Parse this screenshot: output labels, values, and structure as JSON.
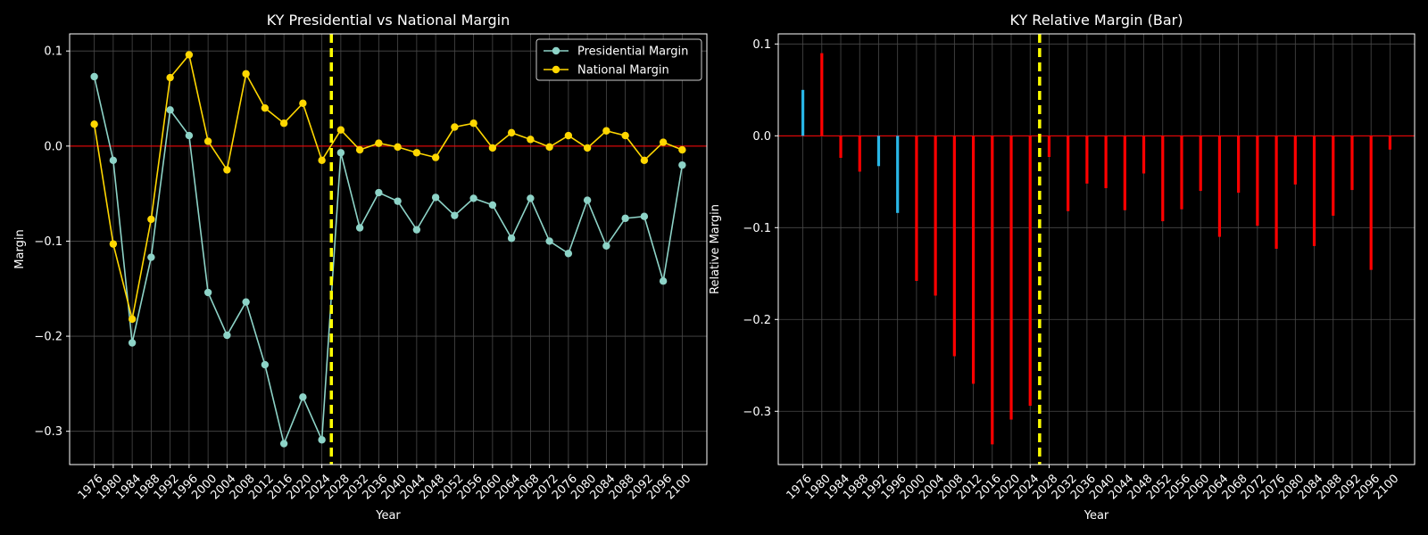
{
  "chart_data": [
    {
      "type": "line",
      "title": "KY Presidential vs National Margin",
      "xlabel": "Year",
      "ylabel": "Margin",
      "xlim": [
        1970.8,
        2105.2
      ],
      "ylim": [
        -0.335,
        0.118
      ],
      "yticks": [
        0.1,
        0.0,
        -0.1,
        -0.2,
        -0.3
      ],
      "ytick_labels": [
        "0.1",
        "0.0",
        "−0.1",
        "−0.2",
        "−0.3"
      ],
      "x": [
        1976,
        1980,
        1984,
        1988,
        1992,
        1996,
        2000,
        2004,
        2008,
        2012,
        2016,
        2020,
        2024,
        2028,
        2032,
        2036,
        2040,
        2044,
        2048,
        2052,
        2056,
        2060,
        2064,
        2068,
        2072,
        2076,
        2080,
        2084,
        2088,
        2092,
        2096,
        2100
      ],
      "x_tick_labels": [
        "1976",
        "1980",
        "1984",
        "1988",
        "1992",
        "1996",
        "2000",
        "2004",
        "2008",
        "2012",
        "2016",
        "2020",
        "2024",
        "2028",
        "2032",
        "2036",
        "2040",
        "2044",
        "2048",
        "2052",
        "2056",
        "2060",
        "2064",
        "2068",
        "2072",
        "2076",
        "2080",
        "2084",
        "2088",
        "2092",
        "2096",
        "2100"
      ],
      "series": [
        {
          "name": "Presidential Margin",
          "color": "#8dd3c7",
          "values": [
            0.073,
            -0.015,
            -0.207,
            -0.117,
            0.038,
            0.011,
            -0.154,
            -0.199,
            -0.164,
            -0.23,
            -0.313,
            -0.264,
            -0.309,
            -0.007,
            -0.086,
            -0.049,
            -0.058,
            -0.088,
            -0.054,
            -0.073,
            -0.055,
            -0.062,
            -0.097,
            -0.055,
            -0.1,
            -0.113,
            -0.057,
            -0.105,
            -0.076,
            -0.074,
            -0.142,
            -0.02
          ]
        },
        {
          "name": "National Margin",
          "color": "#ffd700",
          "values": [
            0.023,
            -0.103,
            -0.182,
            -0.077,
            0.072,
            0.096,
            0.005,
            -0.025,
            0.076,
            0.04,
            0.024,
            0.045,
            -0.015,
            0.017,
            -0.004,
            0.003,
            -0.001,
            -0.007,
            -0.012,
            0.02,
            0.024,
            -0.002,
            0.014,
            0.007,
            -0.001,
            0.011,
            -0.002,
            0.016,
            0.011,
            -0.015,
            0.004,
            -0.004
          ]
        }
      ],
      "reference_lines": {
        "zero_line": {
          "y": 0,
          "color": "#ff0000"
        },
        "divider": {
          "x": 2026,
          "color": "#ffff00",
          "style": "dashed"
        }
      },
      "grid": true,
      "legend": "top-right"
    },
    {
      "type": "bar",
      "title": "KY Relative Margin (Bar)",
      "xlabel": "Year",
      "ylabel": "Relative Margin",
      "xlim": [
        1970.8,
        2105.2
      ],
      "ylim": [
        -0.358,
        0.111
      ],
      "yticks": [
        0.1,
        0.0,
        -0.1,
        -0.2,
        -0.3
      ],
      "ytick_labels": [
        "0.1",
        "0.0",
        "−0.1",
        "−0.2",
        "−0.3"
      ],
      "x": [
        1976,
        1980,
        1984,
        1988,
        1992,
        1996,
        2000,
        2004,
        2008,
        2012,
        2016,
        2020,
        2024,
        2028,
        2032,
        2036,
        2040,
        2044,
        2048,
        2052,
        2056,
        2060,
        2064,
        2068,
        2072,
        2076,
        2080,
        2084,
        2088,
        2092,
        2096,
        2100
      ],
      "x_tick_labels": [
        "1976",
        "1980",
        "1984",
        "1988",
        "1992",
        "1996",
        "2000",
        "2004",
        "2008",
        "2012",
        "2016",
        "2020",
        "2024",
        "2028",
        "2032",
        "2036",
        "2040",
        "2044",
        "2048",
        "2052",
        "2056",
        "2060",
        "2064",
        "2068",
        "2072",
        "2076",
        "2080",
        "2084",
        "2088",
        "2092",
        "2096",
        "2100"
      ],
      "values": [
        0.05,
        0.09,
        -0.024,
        -0.039,
        -0.033,
        -0.084,
        -0.158,
        -0.174,
        -0.24,
        -0.27,
        -0.336,
        -0.309,
        -0.294,
        -0.023,
        -0.082,
        -0.052,
        -0.057,
        -0.081,
        -0.041,
        -0.093,
        -0.08,
        -0.06,
        -0.11,
        -0.062,
        -0.098,
        -0.123,
        -0.053,
        -0.12,
        -0.087,
        -0.059,
        -0.146,
        -0.015
      ],
      "bar_colors": [
        "#29b6e6",
        "#ff0000",
        "#ff0000",
        "#ff0000",
        "#29b6e6",
        "#29b6e6",
        "#ff0000",
        "#ff0000",
        "#ff0000",
        "#ff0000",
        "#ff0000",
        "#ff0000",
        "#ff0000",
        "#ff0000",
        "#ff0000",
        "#ff0000",
        "#ff0000",
        "#ff0000",
        "#ff0000",
        "#ff0000",
        "#ff0000",
        "#ff0000",
        "#ff0000",
        "#ff0000",
        "#ff0000",
        "#ff0000",
        "#ff0000",
        "#ff0000",
        "#ff0000",
        "#ff0000",
        "#ff0000",
        "#ff0000"
      ],
      "reference_lines": {
        "zero_line": {
          "y": 0,
          "color": "#ff0000"
        },
        "divider": {
          "x": 2026,
          "color": "#ffff00",
          "style": "dashed"
        }
      },
      "grid": true
    }
  ]
}
